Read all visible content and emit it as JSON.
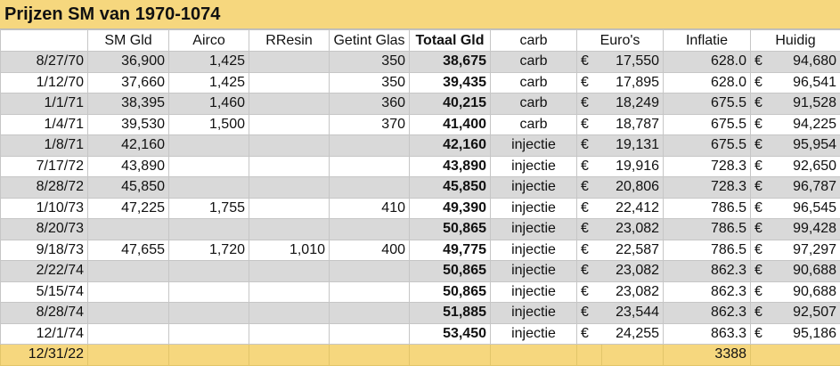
{
  "title": "Prijzen SM van 1970-1074",
  "headers": [
    "",
    "SM Gld",
    "Airco",
    "RResin",
    "Getint Glas",
    "Totaal Gld",
    "carb",
    "Euro's",
    "Inflatie",
    "Huidig"
  ],
  "currency_symbol": "€",
  "rows": [
    {
      "date": "8/27/70",
      "sm": "36,900",
      "airco": "1,425",
      "resin": "",
      "glas": "350",
      "totaal": "38,675",
      "type": "carb",
      "euro": "17,550",
      "inflatie": "628.0",
      "huidig": "94,680"
    },
    {
      "date": "1/12/70",
      "sm": "37,660",
      "airco": "1,425",
      "resin": "",
      "glas": "350",
      "totaal": "39,435",
      "type": "carb",
      "euro": "17,895",
      "inflatie": "628.0",
      "huidig": "96,541"
    },
    {
      "date": "1/1/71",
      "sm": "38,395",
      "airco": "1,460",
      "resin": "",
      "glas": "360",
      "totaal": "40,215",
      "type": "carb",
      "euro": "18,249",
      "inflatie": "675.5",
      "huidig": "91,528"
    },
    {
      "date": "1/4/71",
      "sm": "39,530",
      "airco": "1,500",
      "resin": "",
      "glas": "370",
      "totaal": "41,400",
      "type": "carb",
      "euro": "18,787",
      "inflatie": "675.5",
      "huidig": "94,225"
    },
    {
      "date": "1/8/71",
      "sm": "42,160",
      "airco": "",
      "resin": "",
      "glas": "",
      "totaal": "42,160",
      "type": "injectie",
      "euro": "19,131",
      "inflatie": "675.5",
      "huidig": "95,954"
    },
    {
      "date": "7/17/72",
      "sm": "43,890",
      "airco": "",
      "resin": "",
      "glas": "",
      "totaal": "43,890",
      "type": "injectie",
      "euro": "19,916",
      "inflatie": "728.3",
      "huidig": "92,650"
    },
    {
      "date": "8/28/72",
      "sm": "45,850",
      "airco": "",
      "resin": "",
      "glas": "",
      "totaal": "45,850",
      "type": "injectie",
      "euro": "20,806",
      "inflatie": "728.3",
      "huidig": "96,787"
    },
    {
      "date": "1/10/73",
      "sm": "47,225",
      "airco": "1,755",
      "resin": "",
      "glas": "410",
      "totaal": "49,390",
      "type": "injectie",
      "euro": "22,412",
      "inflatie": "786.5",
      "huidig": "96,545"
    },
    {
      "date": "8/20/73",
      "sm": "",
      "airco": "",
      "resin": "",
      "glas": "",
      "totaal": "50,865",
      "type": "injectie",
      "euro": "23,082",
      "inflatie": "786.5",
      "huidig": "99,428"
    },
    {
      "date": "9/18/73",
      "sm": "47,655",
      "airco": "1,720",
      "resin": "1,010",
      "glas": "400",
      "totaal": "49,775",
      "type": "injectie",
      "euro": "22,587",
      "inflatie": "786.5",
      "huidig": "97,297"
    },
    {
      "date": "2/22/74",
      "sm": "",
      "airco": "",
      "resin": "",
      "glas": "",
      "totaal": "50,865",
      "type": "injectie",
      "euro": "23,082",
      "inflatie": "862.3",
      "huidig": "90,688"
    },
    {
      "date": "5/15/74",
      "sm": "",
      "airco": "",
      "resin": "",
      "glas": "",
      "totaal": "50,865",
      "type": "injectie",
      "euro": "23,082",
      "inflatie": "862.3",
      "huidig": "90,688"
    },
    {
      "date": "8/28/74",
      "sm": "",
      "airco": "",
      "resin": "",
      "glas": "",
      "totaal": "51,885",
      "type": "injectie",
      "euro": "23,544",
      "inflatie": "862.3",
      "huidig": "92,507"
    },
    {
      "date": "12/1/74",
      "sm": "",
      "airco": "",
      "resin": "",
      "glas": "",
      "totaal": "53,450",
      "type": "injectie",
      "euro": "24,255",
      "inflatie": "863.3",
      "huidig": "95,186"
    }
  ],
  "footer": {
    "date": "12/31/22",
    "inflatie": "3388"
  },
  "colors": {
    "header_fill": "#f6d77e",
    "stripe": "#d9d9d9",
    "grid": "#c6c6c6"
  }
}
